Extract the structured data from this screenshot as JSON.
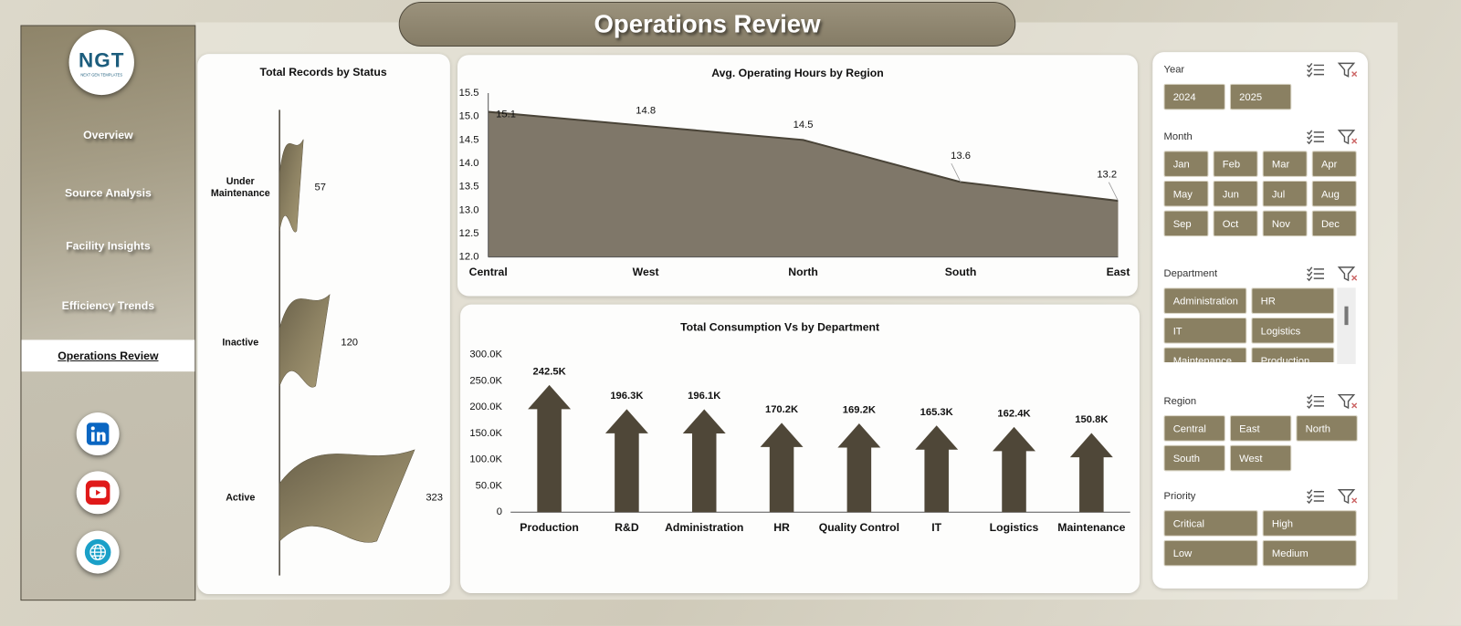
{
  "header": {
    "title": "Operations Review"
  },
  "nav": {
    "logo": {
      "text": "NGT",
      "tagline": "NEXT GEN TEMPLATES"
    },
    "items": [
      "Overview",
      "Source Analysis",
      "Facility Insights",
      "Efficiency Trends",
      "Operations Review"
    ],
    "active": 4
  },
  "chart_data": [
    {
      "type": "bar",
      "orientation": "horizontal",
      "shape": "wave",
      "title": "Total Records by Status",
      "categories": [
        "Under Maintenance",
        "Inactive",
        "Active"
      ],
      "values": [
        57,
        120,
        323
      ],
      "color": "#857a5c"
    },
    {
      "type": "area",
      "title": "Avg. Operating Hours by Region",
      "categories": [
        "Central",
        "West",
        "North",
        "South",
        "East"
      ],
      "values": [
        15.1,
        14.8,
        14.5,
        13.6,
        13.2
      ],
      "color": "#7f7769",
      "line_color": "#4a4438",
      "ylim": [
        12.0,
        15.5
      ],
      "yticks": [
        {
          "value": 12,
          "label": "12.0"
        },
        12.5,
        {
          "value": 13,
          "label": "13.0"
        },
        13.5,
        {
          "value": 14,
          "label": "14.0"
        },
        14.5,
        {
          "value": 15,
          "label": "15.0"
        },
        15.5
      ]
    },
    {
      "type": "bar",
      "orientation": "vertical",
      "shape": "arrow",
      "title": "Total Consumption Vs  by Department",
      "categories": [
        "Production",
        "R&D",
        "Administration",
        "HR",
        "Quality Control",
        "IT",
        "Logistics",
        "Maintenance"
      ],
      "values": [
        242500,
        196300,
        196100,
        170200,
        169200,
        165300,
        162400,
        150800
      ],
      "value_labels": [
        "242.5K",
        "196.3K",
        "196.1K",
        "170.2K",
        "169.2K",
        "165.3K",
        "162.4K",
        "150.8K"
      ],
      "color": "#4f4738",
      "ylim": [
        0,
        300000
      ],
      "yticks": [
        0,
        {
          "value": 50000,
          "label": "50.0K"
        },
        {
          "value": 100000,
          "label": "100.0K"
        },
        {
          "value": 150000,
          "label": "150.0K"
        },
        {
          "value": 200000,
          "label": "200.0K"
        },
        {
          "value": 250000,
          "label": "250.0K"
        },
        {
          "value": 300000,
          "label": "300.0K"
        }
      ]
    }
  ],
  "slicers": [
    {
      "title": "Year",
      "items": [
        "2024",
        "2025"
      ]
    },
    {
      "title": "Month",
      "items": [
        "Jan",
        "Feb",
        "Mar",
        "Apr",
        "May",
        "Jun",
        "Jul",
        "Aug",
        "Sep",
        "Oct",
        "Nov",
        "Dec"
      ]
    },
    {
      "title": "Department",
      "items": [
        "Administration",
        "HR",
        "IT",
        "Logistics",
        "Maintenance",
        "Production"
      ]
    },
    {
      "title": "Region",
      "items": [
        "Central",
        "East",
        "North",
        "South",
        "West"
      ]
    },
    {
      "title": "Priority",
      "items": [
        "Critical",
        "High",
        "Low",
        "Medium"
      ]
    }
  ]
}
